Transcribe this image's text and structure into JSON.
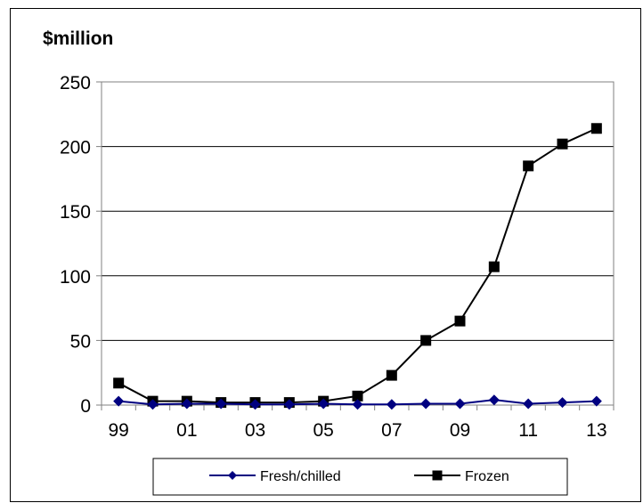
{
  "chart_data": {
    "type": "line",
    "unit_label": "$million",
    "title": "",
    "xlabel": "",
    "ylabel": "",
    "x": [
      "99",
      "00",
      "01",
      "02",
      "03",
      "04",
      "05",
      "06",
      "07",
      "08",
      "09",
      "10",
      "11",
      "12",
      "13"
    ],
    "x_tick_labels": [
      "99",
      "01",
      "03",
      "05",
      "07",
      "09",
      "11",
      "13"
    ],
    "y_tick_labels": [
      "0",
      "50",
      "100",
      "150",
      "200",
      "250"
    ],
    "ylim": [
      0,
      250
    ],
    "grid": "horizontal",
    "legend_position": "bottom",
    "series": [
      {
        "name": "Fresh/chilled",
        "color": "#000080",
        "marker": "diamond",
        "values": [
          3,
          0.5,
          1,
          1,
          0.5,
          0.5,
          1,
          0.5,
          0.5,
          1,
          1,
          4,
          1,
          2,
          3
        ]
      },
      {
        "name": "Frozen",
        "color": "#000000",
        "marker": "square",
        "values": [
          17,
          3,
          3,
          2,
          2,
          2,
          3,
          7,
          23,
          50,
          65,
          107,
          185,
          202,
          214
        ]
      }
    ]
  }
}
